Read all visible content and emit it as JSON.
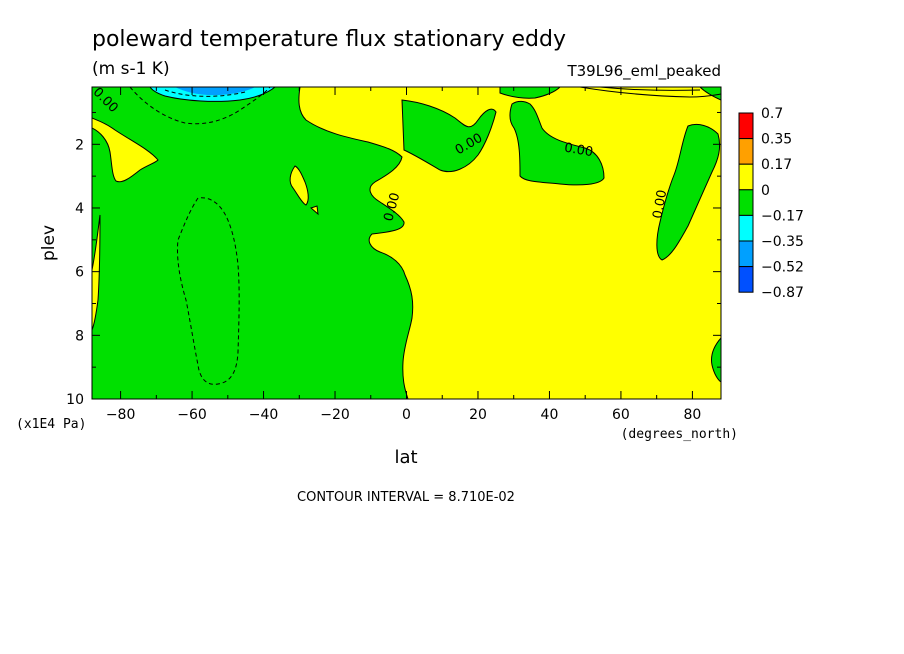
{
  "chart_data": {
    "type": "heatmap",
    "title": "poleward temperature flux stationary eddy",
    "units": "(m s-1 K)",
    "dataset": "T39L96_eml_peaked",
    "xlabel": "lat",
    "x_units": "(degrees_north)",
    "ylabel": "plev",
    "y_units": "(x1E4 Pa)",
    "xlim": [
      -88,
      88
    ],
    "ylim": [
      0.2,
      10
    ],
    "y_inverted": true,
    "x_ticks": [
      -80,
      -60,
      -40,
      -20,
      0,
      20,
      40,
      60,
      80
    ],
    "y_ticks": [
      2,
      4,
      6,
      8,
      10
    ],
    "colorbar": {
      "levels": [
        "0.7",
        "0.35",
        "0.17",
        "0",
        "-0.17",
        "-0.35",
        "-0.52",
        "-0.87"
      ],
      "colors": [
        "#ff0000",
        "#ffa000",
        "#ffff00",
        "#00e000",
        "#00ffff",
        "#00a0ff",
        "#0050ff"
      ]
    },
    "contour_labels": [
      {
        "text": "0.00",
        "lat": -85,
        "plev": 0.7
      },
      {
        "text": "0.00",
        "lat": 18,
        "plev": 2.1
      },
      {
        "text": "0.00",
        "lat": 48,
        "plev": 2.3
      },
      {
        "text": "0.00",
        "lat": -3,
        "plev": 4.0
      },
      {
        "text": "0.00",
        "lat": 72,
        "plev": 3.9
      }
    ],
    "contour_interval_text": "CONTOUR INTERVAL = 8.710E-02"
  }
}
